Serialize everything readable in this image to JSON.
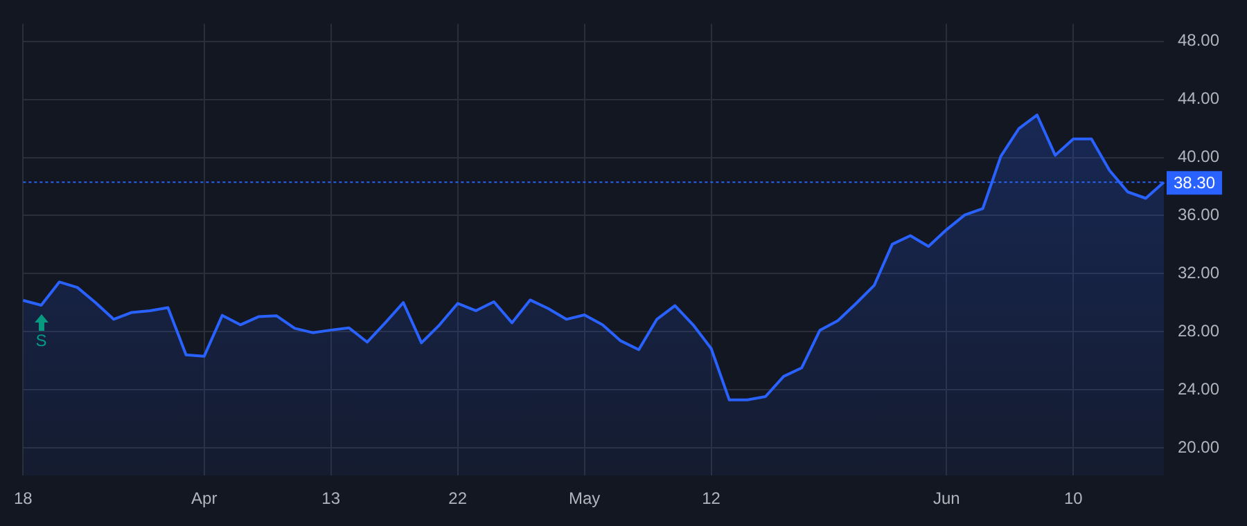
{
  "chart_data": {
    "type": "area",
    "categories": [
      "18",
      null,
      null,
      null,
      null,
      null,
      null,
      null,
      null,
      null,
      "Apr",
      null,
      null,
      null,
      null,
      null,
      null,
      "13",
      null,
      null,
      null,
      null,
      null,
      null,
      "22",
      null,
      null,
      null,
      null,
      null,
      null,
      "May",
      null,
      null,
      null,
      null,
      null,
      null,
      "12",
      null,
      null,
      null,
      null,
      null,
      null,
      null,
      null,
      null,
      null,
      null,
      null,
      "Jun",
      null,
      null,
      null,
      null,
      null,
      null,
      "10",
      null,
      null,
      null,
      null,
      null
    ],
    "series": [
      {
        "color": "#2962ff",
        "values": [
          30.16,
          29.83,
          31.43,
          31.05,
          30.01,
          28.86,
          29.33,
          29.45,
          29.66,
          26.41,
          26.32,
          29.13,
          28.48,
          29.04,
          29.1,
          28.24,
          27.94,
          28.12,
          28.27,
          27.29,
          28.62,
          30.01,
          27.24,
          28.48,
          29.95,
          29.45,
          30.07,
          28.62,
          30.19,
          29.6,
          28.86,
          29.16,
          28.48,
          27.38,
          26.77,
          28.86,
          29.8,
          28.48,
          26.85,
          23.31,
          23.31,
          23.54,
          24.93,
          25.52,
          28.1,
          28.77,
          29.95,
          31.19,
          34.03,
          34.62,
          33.88,
          35.03,
          36.04,
          36.48,
          40.09,
          42.0,
          42.92,
          40.15,
          41.27,
          41.27,
          39.11,
          37.63,
          37.19,
          38.3
        ]
      }
    ],
    "ylim": [
      18.1,
      49.2
    ],
    "yticks": [
      {
        "value": 20,
        "label": "20.00"
      },
      {
        "value": 24,
        "label": "24.00"
      },
      {
        "value": 28,
        "label": "28.00"
      },
      {
        "value": 32,
        "label": "32.00"
      },
      {
        "value": 36,
        "label": "36.00"
      },
      {
        "value": 40,
        "label": "40.00"
      },
      {
        "value": 44,
        "label": "44.00"
      },
      {
        "value": 48,
        "label": "48.00"
      }
    ],
    "ref_lines": [
      {
        "axis": "y",
        "value": 38.3,
        "label": "38.30",
        "color": "#2962ff",
        "line_style": "dotted"
      }
    ],
    "annotations": [
      "S"
    ],
    "grid": true,
    "legend": false,
    "marker": "none",
    "line_style": "solid"
  }
}
